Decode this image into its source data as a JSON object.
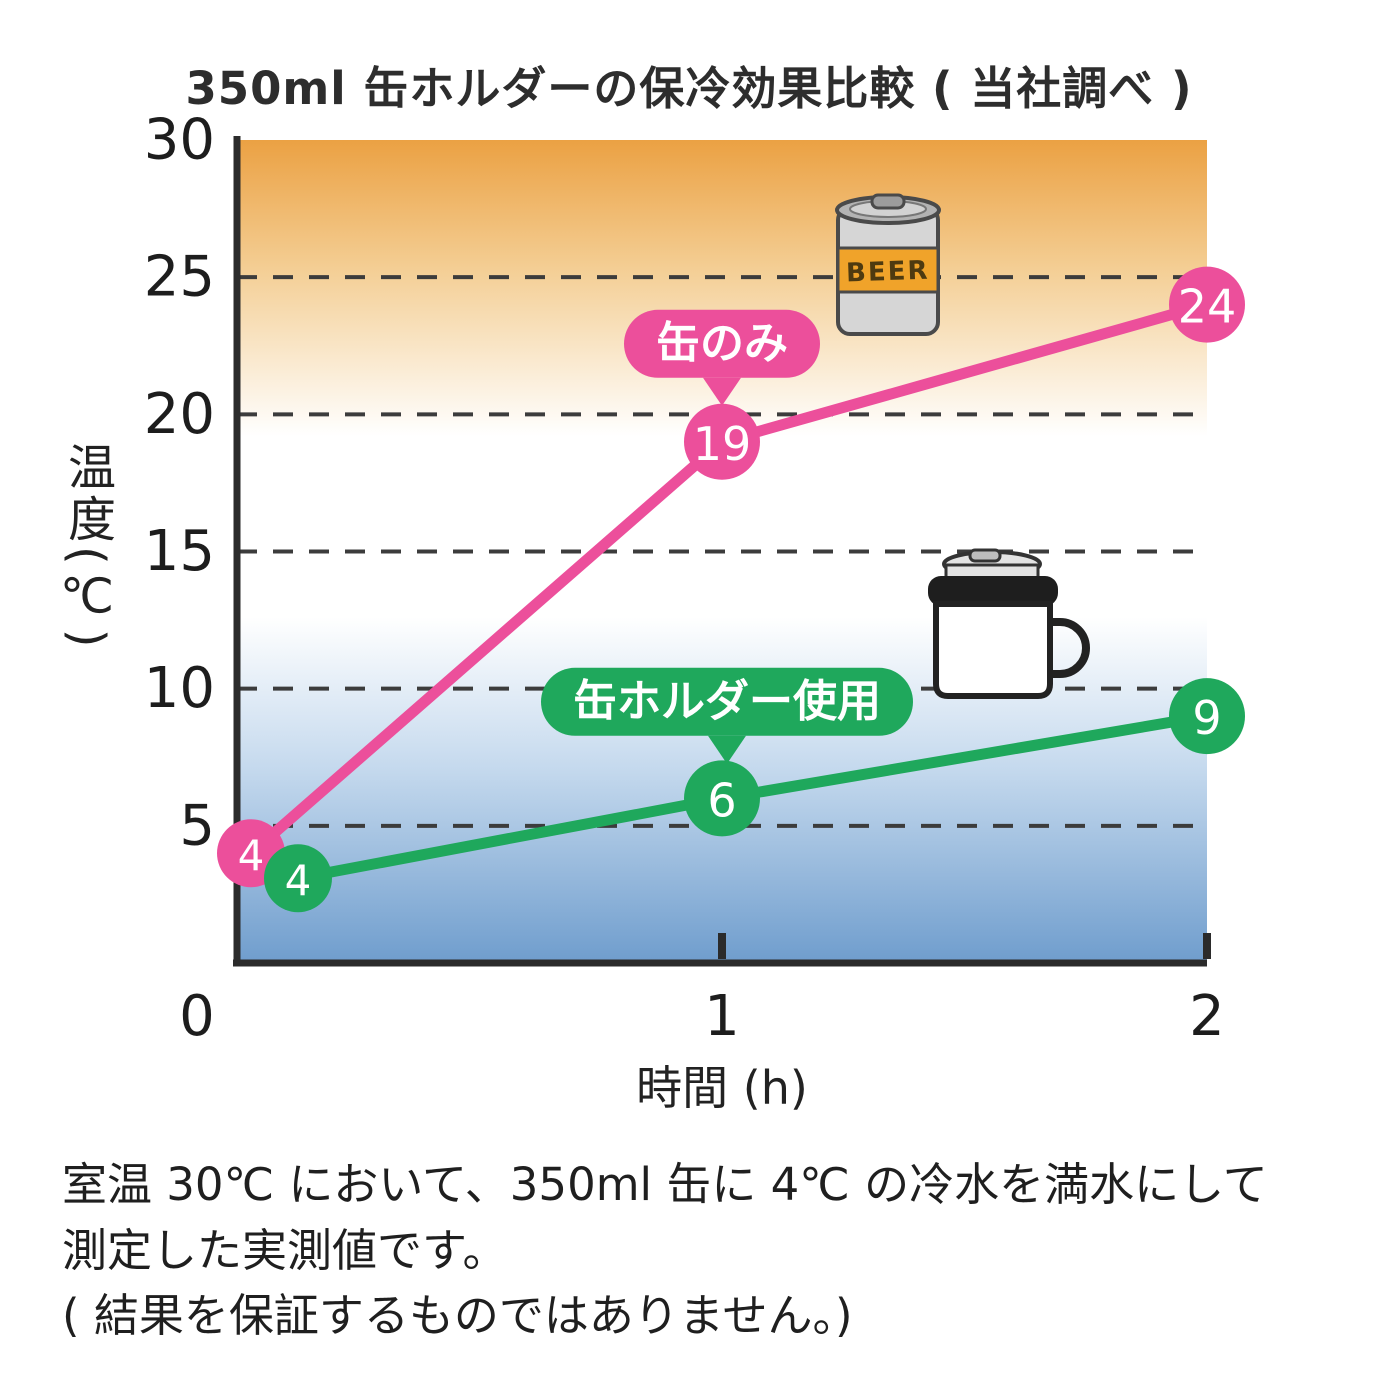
{
  "title": "350ml 缶ホルダーの保冷効果比較 ( 当社調べ )",
  "chart_data": {
    "type": "line",
    "x": [
      0,
      1,
      2
    ],
    "series": [
      {
        "name": "缶のみ",
        "values": [
          4,
          19,
          24
        ],
        "color": "#ec4f9b"
      },
      {
        "name": "缶ホルダー使用",
        "values": [
          4,
          6,
          9
        ],
        "color": "#1fa85c"
      }
    ],
    "xlabel": "時間 (h)",
    "ylabel": "温度(℃)",
    "xlim": [
      0,
      2
    ],
    "ylim": [
      0,
      30
    ],
    "x_ticks": [
      0,
      1,
      2
    ],
    "y_ticks": [
      0,
      5,
      10,
      15,
      20,
      25,
      30
    ],
    "gridlines": [
      5,
      10,
      15,
      20,
      25
    ],
    "grid_style": "dashed",
    "legend_position": "inline-bubbles",
    "background_gradient": {
      "top": "#eba143",
      "middle": "#ffffff",
      "bottom": "#6f9dcd"
    }
  },
  "annotations": {
    "series_bubbles": [
      {
        "text": "缶のみ",
        "color": "#ec4f9b"
      },
      {
        "text": "缶ホルダー使用",
        "color": "#1fa85c"
      }
    ]
  },
  "icons": {
    "beer_can": "beer-can-icon",
    "beer_label": "BEER",
    "can_holder": "can-holder-mug-icon"
  },
  "footer": {
    "lines": [
      "室温 30℃ において、350ml 缶に 4℃ の冷水を満水にして",
      "測定した実測値です。",
      "( 結果を保証するものではありません。)"
    ]
  }
}
